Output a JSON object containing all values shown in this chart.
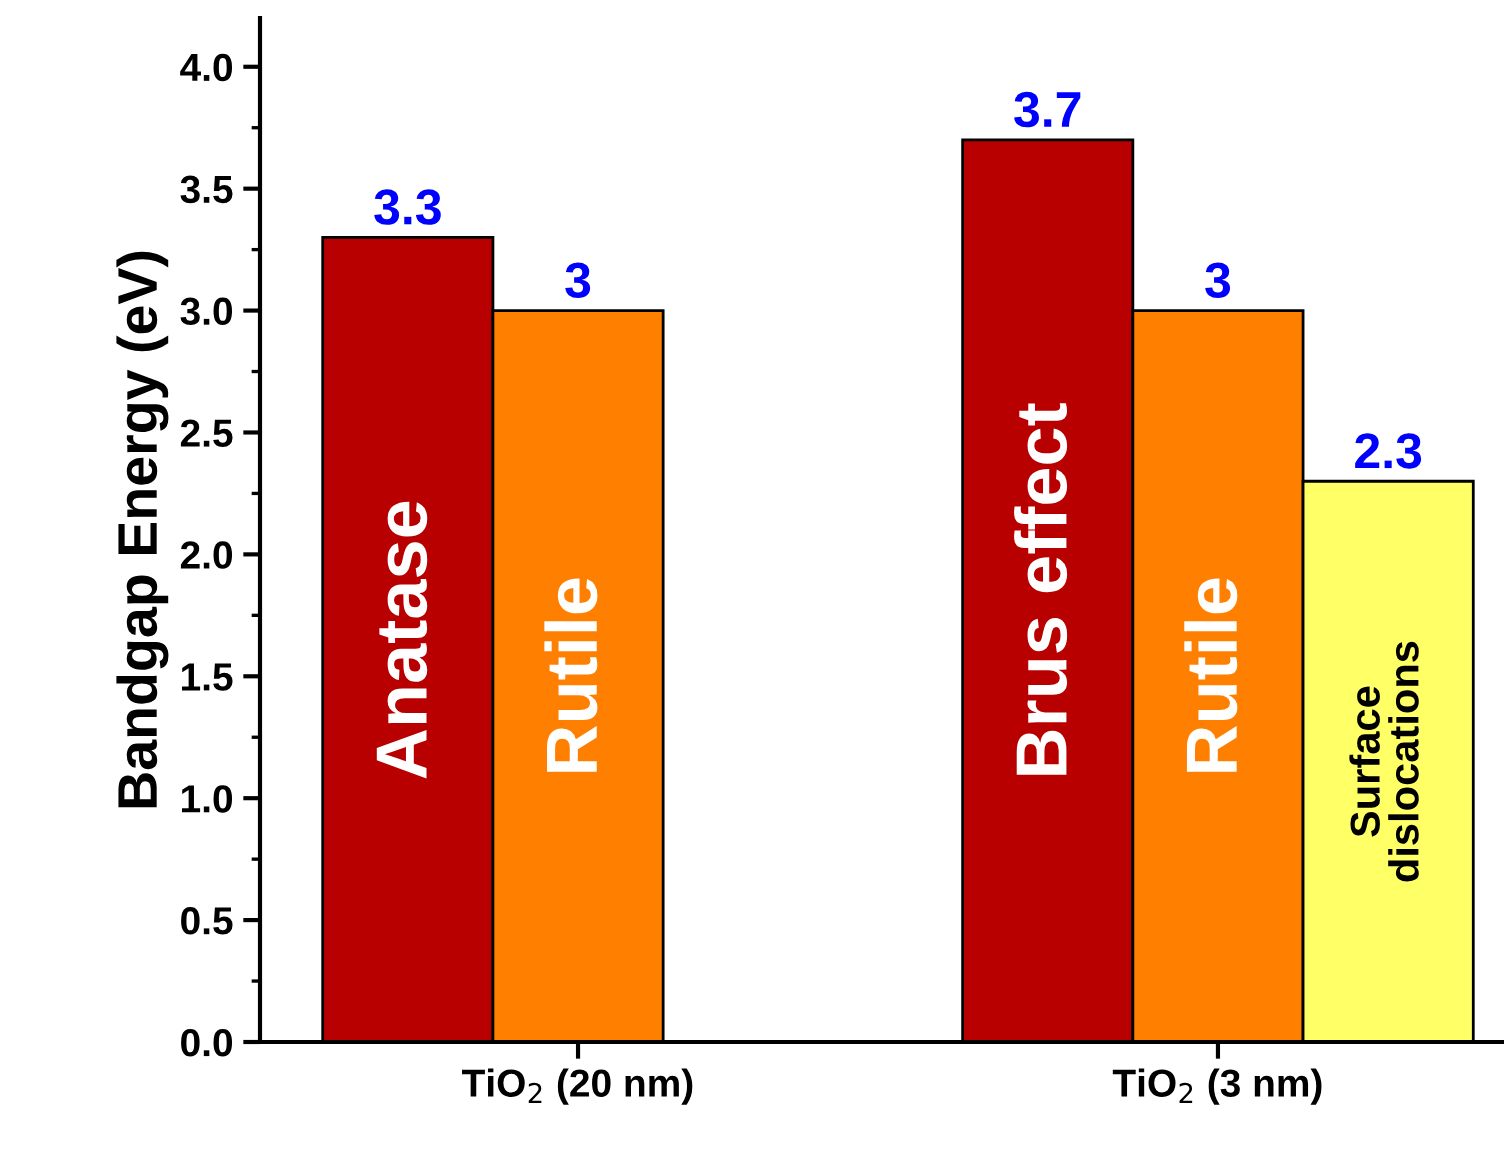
{
  "chart_data": {
    "type": "bar",
    "ylabel": "Bandgap Energy (eV)",
    "categories": [
      "TiO$_{2}$ (20 nm)",
      "TiO$_{2}$ (3 nm)"
    ],
    "series": [
      {
        "color": "#b90000",
        "values": [
          3.3,
          3.7
        ]
      },
      {
        "color": "#ff8000",
        "values": [
          3,
          3
        ]
      },
      {
        "color": "#ffff66",
        "values": [
          null,
          2.3
        ]
      }
    ],
    "ylim": [
      0,
      4.2
    ],
    "yticks": [
      {
        "value": 0,
        "label": "0.0"
      },
      {
        "value": 0.5,
        "label": "0.5"
      },
      {
        "value": 1,
        "label": "1.0"
      },
      {
        "value": 1.5,
        "label": "1.5"
      },
      {
        "value": 2,
        "label": "2.0"
      },
      {
        "value": 2.5,
        "label": "2.5"
      },
      {
        "value": 3,
        "label": "3.0"
      },
      {
        "value": 3.5,
        "label": "3.5"
      },
      {
        "value": 4,
        "label": "4.0"
      }
    ],
    "data_labels": true,
    "annotations": [
      "Anatase",
      "Brus effect",
      "Rutile",
      "Rutile",
      "Surface\ndislocations"
    ],
    "grid": false,
    "legend": false
  }
}
